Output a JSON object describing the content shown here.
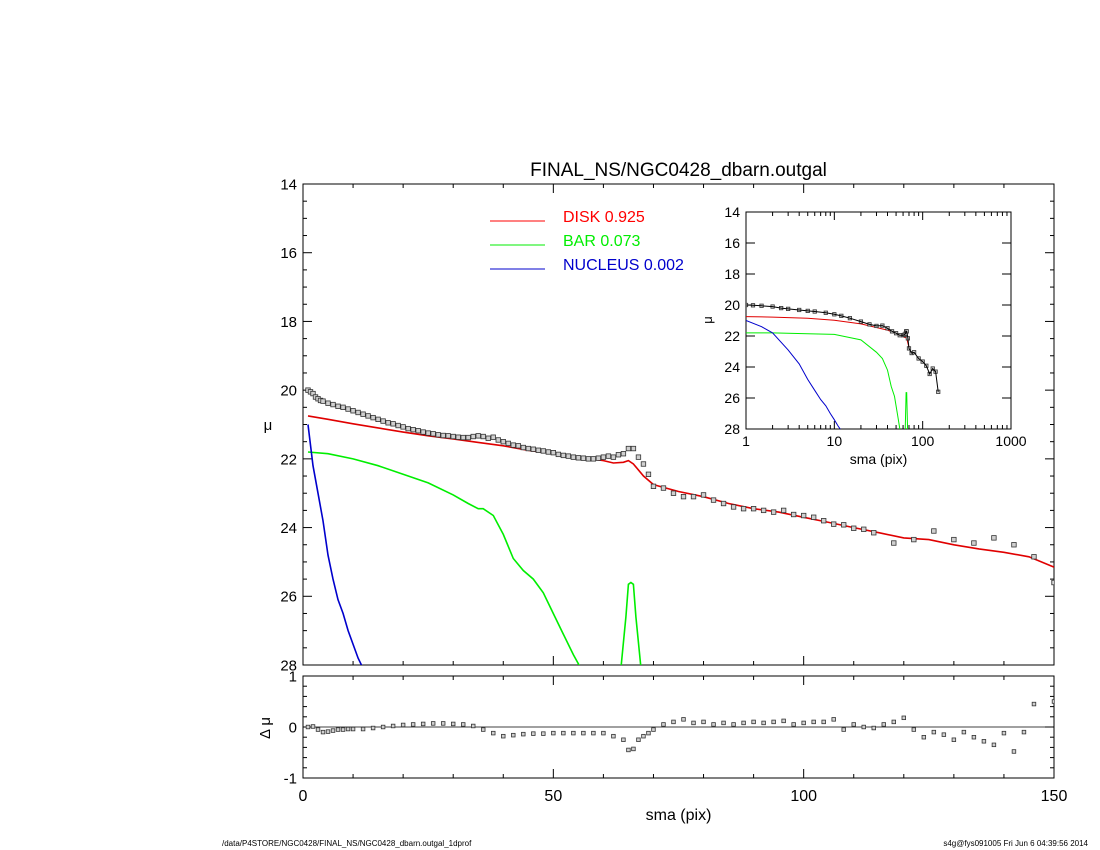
{
  "chart_data": [
    {
      "type": "line",
      "title": "FINAL_NS/NGC0428_dbarn.outgal",
      "xlabel": "",
      "ylabel": "μ",
      "xlim": [
        0,
        150
      ],
      "ylim": [
        28,
        14
      ],
      "y_inverted": true,
      "yticks": [
        "14",
        "16",
        "18",
        "20",
        "22",
        "24",
        "26",
        "28"
      ],
      "legend": {
        "placement": "top-center",
        "entries": [
          {
            "name": "DISK",
            "value": "0.925",
            "color": "#ff0000"
          },
          {
            "name": "BAR",
            "value": "0.073",
            "color": "#00ee00"
          },
          {
            "name": "NUCLEUS",
            "value": "0.002",
            "color": "#0000cc"
          }
        ]
      },
      "series": [
        {
          "name": "DISK",
          "color": "#e00000",
          "x": [
            1,
            5,
            10,
            15,
            20,
            25,
            30,
            35,
            40,
            45,
            50,
            55,
            60,
            62,
            64,
            65,
            66,
            68,
            70,
            75,
            80,
            85,
            90,
            95,
            100,
            105,
            110,
            115,
            120,
            125,
            130,
            135,
            140,
            145,
            150
          ],
          "y": [
            20.75,
            20.85,
            20.98,
            21.1,
            21.22,
            21.33,
            21.42,
            21.52,
            21.62,
            21.75,
            21.85,
            21.95,
            22.05,
            22.12,
            22.1,
            22.05,
            22.15,
            22.5,
            22.75,
            22.95,
            23.1,
            23.3,
            23.45,
            23.55,
            23.7,
            23.85,
            24.0,
            24.15,
            24.3,
            24.35,
            24.5,
            24.62,
            24.72,
            24.85,
            25.15
          ]
        },
        {
          "name": "BAR",
          "color": "#00ee00",
          "x": [
            1,
            5,
            10,
            15,
            20,
            25,
            30,
            33,
            35,
            36,
            38,
            40,
            42,
            44,
            46,
            48,
            50,
            52,
            54,
            55.5
          ],
          "y": [
            21.8,
            21.85,
            22.0,
            22.2,
            22.45,
            22.7,
            23.05,
            23.3,
            23.45,
            23.45,
            23.65,
            24.2,
            24.9,
            25.25,
            25.5,
            25.9,
            26.5,
            27.1,
            27.7,
            28.1
          ]
        },
        {
          "name": "BAR",
          "color": "#00ee00",
          "x": [
            63.5,
            64.5,
            65,
            65.5,
            66,
            66.5,
            67.5
          ],
          "y": [
            28.1,
            26.6,
            25.65,
            25.6,
            25.65,
            26.6,
            28.1
          ]
        },
        {
          "name": "NUCLEUS",
          "color": "#0000cc",
          "x": [
            1,
            2,
            3,
            4,
            5,
            6,
            7,
            8,
            9,
            10,
            11,
            12
          ],
          "y": [
            21.0,
            22.2,
            23.0,
            23.8,
            24.8,
            25.5,
            26.1,
            26.5,
            27.0,
            27.4,
            27.8,
            28.1
          ]
        }
      ],
      "points": {
        "name": "observed",
        "x": [
          1,
          1.5,
          2,
          2.5,
          3,
          3.5,
          4,
          5,
          6,
          7,
          8,
          9,
          10,
          11,
          12,
          13,
          14,
          15,
          16,
          17,
          18,
          19,
          20,
          21,
          22,
          23,
          24,
          25,
          26,
          27,
          28,
          29,
          30,
          31,
          32,
          33,
          34,
          35,
          36,
          37,
          38,
          39,
          40,
          41,
          42,
          43,
          44,
          45,
          46,
          47,
          48,
          49,
          50,
          51,
          52,
          53,
          54,
          55,
          56,
          57,
          58,
          59,
          60,
          61,
          62,
          63,
          64,
          65,
          66,
          67,
          68,
          69,
          70,
          72,
          74,
          76,
          78,
          80,
          82,
          84,
          86,
          88,
          90,
          92,
          94,
          96,
          98,
          100,
          102,
          104,
          106,
          108,
          110,
          112,
          114,
          118,
          122,
          126,
          130,
          134,
          138,
          142,
          146,
          150
        ],
        "y": [
          20.0,
          20.05,
          20.1,
          20.2,
          20.25,
          20.3,
          20.32,
          20.38,
          20.42,
          20.47,
          20.5,
          20.55,
          20.6,
          20.65,
          20.7,
          20.75,
          20.8,
          20.85,
          20.9,
          20.95,
          20.98,
          21.03,
          21.07,
          21.12,
          21.15,
          21.18,
          21.22,
          21.25,
          21.27,
          21.3,
          21.32,
          21.33,
          21.35,
          21.37,
          21.38,
          21.38,
          21.35,
          21.33,
          21.35,
          21.4,
          21.37,
          21.45,
          21.5,
          21.55,
          21.6,
          21.62,
          21.67,
          21.7,
          21.72,
          21.75,
          21.77,
          21.8,
          21.82,
          21.87,
          21.9,
          21.92,
          21.95,
          21.97,
          21.98,
          22.0,
          22.0,
          21.98,
          21.95,
          21.92,
          21.95,
          21.88,
          21.85,
          21.7,
          21.7,
          21.95,
          22.15,
          22.45,
          22.8,
          22.85,
          23.0,
          23.1,
          23.1,
          23.05,
          23.2,
          23.3,
          23.4,
          23.45,
          23.45,
          23.5,
          23.55,
          23.5,
          23.62,
          23.65,
          23.7,
          23.8,
          23.9,
          23.92,
          24.02,
          24.05,
          24.15,
          24.45,
          24.35,
          24.1,
          24.35,
          24.45,
          24.3,
          24.5,
          24.85,
          25.6
        ]
      }
    },
    {
      "type": "line",
      "title": "",
      "xlabel": "sma (pix)",
      "ylabel": "Δ μ",
      "xlim": [
        0,
        150
      ],
      "ylim": [
        -1,
        1
      ],
      "xticks": [
        "0",
        "50",
        "100",
        "150"
      ],
      "yticks": [
        "1",
        "0",
        "-1"
      ],
      "reference_line": 0,
      "points": {
        "name": "residual",
        "x": [
          1,
          2,
          3,
          4,
          5,
          6,
          7,
          8,
          9,
          10,
          12,
          14,
          16,
          18,
          20,
          22,
          24,
          26,
          28,
          30,
          32,
          34,
          36,
          38,
          40,
          42,
          44,
          46,
          48,
          50,
          52,
          54,
          56,
          58,
          60,
          62,
          64,
          65,
          66,
          67,
          68,
          69,
          70,
          72,
          74,
          76,
          78,
          80,
          82,
          84,
          86,
          88,
          90,
          92,
          94,
          96,
          98,
          100,
          102,
          104,
          106,
          108,
          110,
          112,
          114,
          116,
          118,
          120,
          122,
          124,
          126,
          128,
          130,
          132,
          134,
          136,
          138,
          140,
          142,
          144,
          146,
          150
        ],
        "y": [
          0.0,
          0.01,
          -0.05,
          -0.1,
          -0.09,
          -0.07,
          -0.05,
          -0.05,
          -0.04,
          -0.04,
          -0.04,
          -0.02,
          0.0,
          0.02,
          0.04,
          0.05,
          0.06,
          0.07,
          0.07,
          0.06,
          0.05,
          0.02,
          -0.05,
          -0.12,
          -0.18,
          -0.16,
          -0.14,
          -0.13,
          -0.13,
          -0.12,
          -0.12,
          -0.12,
          -0.12,
          -0.12,
          -0.12,
          -0.18,
          -0.25,
          -0.45,
          -0.43,
          -0.25,
          -0.18,
          -0.12,
          -0.05,
          0.05,
          0.1,
          0.15,
          0.08,
          0.1,
          0.05,
          0.08,
          0.05,
          0.08,
          0.1,
          0.08,
          0.1,
          0.12,
          0.05,
          0.08,
          0.1,
          0.1,
          0.15,
          -0.05,
          0.05,
          0.0,
          -0.02,
          0.05,
          0.1,
          0.18,
          -0.05,
          -0.2,
          -0.1,
          -0.15,
          -0.25,
          -0.1,
          -0.2,
          -0.28,
          -0.35,
          -0.12,
          -0.48,
          -0.1,
          0.45,
          0.5
        ]
      }
    },
    {
      "type": "line",
      "title": "",
      "xlabel": "sma (pix)",
      "ylabel": "μ",
      "x_scale": "log",
      "xlim": [
        1,
        1000
      ],
      "ylim": [
        28,
        14
      ],
      "y_inverted": true,
      "xticks": [
        "1",
        "10",
        "100",
        "1000"
      ],
      "yticks": [
        "14",
        "16",
        "18",
        "20",
        "22",
        "24",
        "26",
        "28"
      ],
      "placement": "top-right inset",
      "series": [
        {
          "name": "DISK",
          "color": "#e00000",
          "x": [
            1,
            2,
            5,
            10,
            20,
            40,
            60,
            64,
            66,
            70
          ],
          "y": [
            20.75,
            20.78,
            20.85,
            20.98,
            21.22,
            21.62,
            22.05,
            22.1,
            22.15,
            22.75
          ]
        },
        {
          "name": "BAR",
          "color": "#00ee00",
          "x": [
            1,
            2,
            5,
            10,
            20,
            30,
            35,
            40,
            44,
            48,
            52,
            55.5
          ],
          "y": [
            21.8,
            21.8,
            21.85,
            21.9,
            22.25,
            23.05,
            23.45,
            24.2,
            25.25,
            25.9,
            27.1,
            28.1
          ]
        },
        {
          "name": "BAR",
          "color": "#00ee00",
          "x": [
            63.5,
            65,
            66,
            67.5
          ],
          "y": [
            28.1,
            25.65,
            25.65,
            28.1
          ]
        },
        {
          "name": "NUCLEUS",
          "color": "#0000cc",
          "x": [
            1,
            1.5,
            2,
            3,
            4,
            5,
            6,
            7,
            8,
            9,
            10,
            11,
            12
          ],
          "y": [
            21.0,
            21.4,
            21.8,
            22.9,
            23.8,
            24.8,
            25.5,
            26.1,
            26.5,
            27.0,
            27.4,
            27.8,
            28.1
          ]
        }
      ],
      "points": {
        "name": "observed",
        "x": [
          1,
          1.2,
          1.5,
          2,
          2.5,
          3,
          4,
          5,
          6,
          8,
          10,
          12,
          15,
          20,
          25,
          30,
          35,
          40,
          45,
          50,
          55,
          60,
          62,
          64,
          65,
          66,
          68,
          70,
          75,
          80,
          90,
          100,
          110,
          120,
          130,
          140,
          150
        ],
        "y": [
          20.0,
          20.02,
          20.05,
          20.1,
          20.2,
          20.25,
          20.32,
          20.38,
          20.42,
          20.5,
          20.6,
          20.7,
          20.85,
          21.07,
          21.25,
          21.35,
          21.33,
          21.5,
          21.7,
          21.82,
          21.95,
          21.95,
          21.92,
          21.85,
          21.7,
          21.7,
          22.15,
          22.8,
          23.1,
          23.05,
          23.45,
          23.65,
          23.92,
          24.45,
          24.1,
          24.3,
          25.6
        ]
      }
    }
  ],
  "footer": {
    "left": "/data/P4STORE/NGC0428/FINAL_NS/NGC0428_dbarn.outgal_1dprof",
    "right": "s4g@fys091005  Fri Jun  6 04:39:56 2014"
  }
}
